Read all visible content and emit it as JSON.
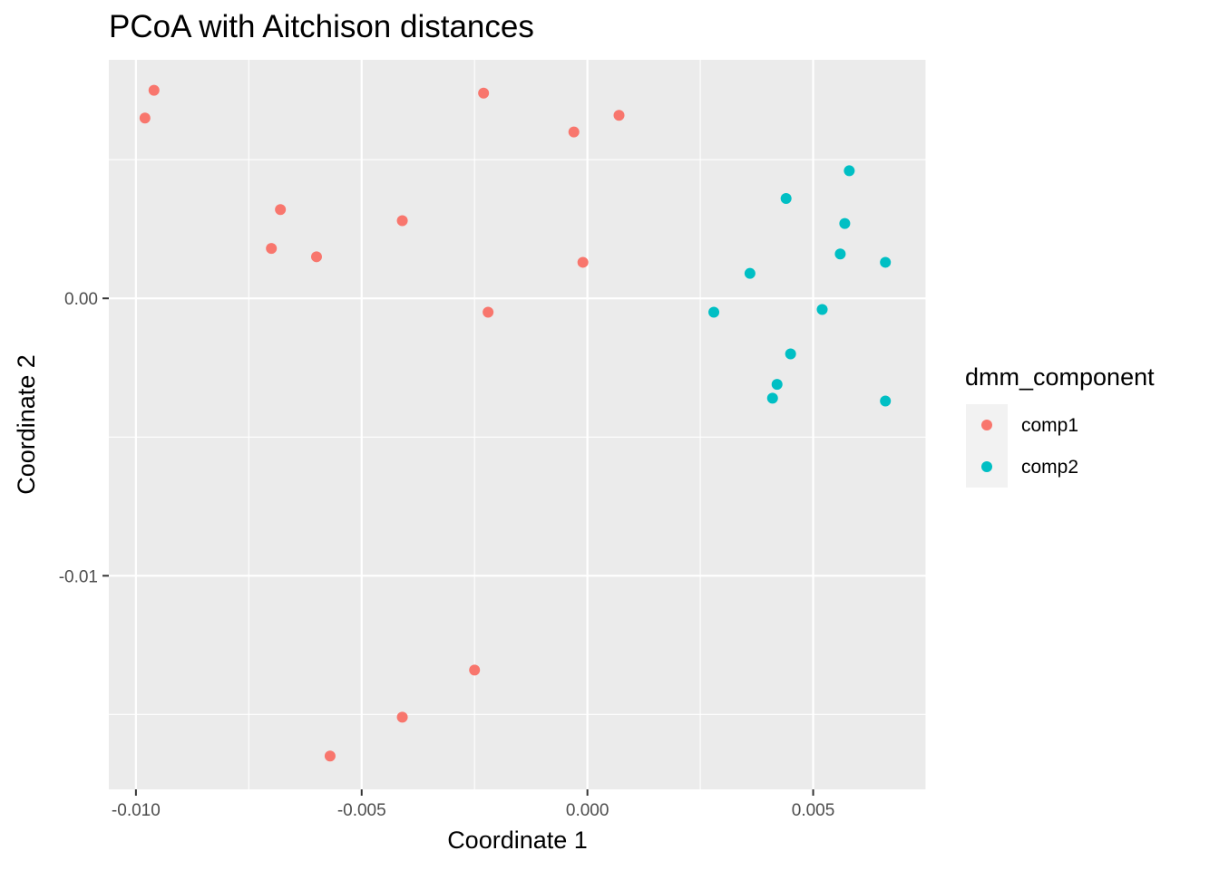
{
  "chart_data": {
    "type": "scatter",
    "title": "PCoA with Aitchison distances",
    "xlabel": "Coordinate 1",
    "ylabel": "Coordinate 2",
    "xlim": [
      -0.0106,
      0.0075
    ],
    "ylim": [
      -0.0177,
      0.0086
    ],
    "xticks": [
      -0.01,
      -0.005,
      0.0,
      0.005
    ],
    "xtick_labels": [
      "-0.010",
      "-0.005",
      "0.000",
      "0.005"
    ],
    "yticks": [
      0.0,
      -0.01
    ],
    "ytick_labels": [
      "0.00",
      "-0.01"
    ],
    "grid": true,
    "legend": {
      "title": "dmm_component",
      "position": "right"
    },
    "series": [
      {
        "name": "comp1",
        "color": "#F8766D",
        "points": [
          {
            "x": -0.0096,
            "y": 0.0075
          },
          {
            "x": -0.0098,
            "y": 0.0065
          },
          {
            "x": -0.0023,
            "y": 0.0074
          },
          {
            "x": -0.0003,
            "y": 0.006
          },
          {
            "x": 0.0007,
            "y": 0.0066
          },
          {
            "x": -0.0068,
            "y": 0.0032
          },
          {
            "x": -0.007,
            "y": 0.0018
          },
          {
            "x": -0.006,
            "y": 0.0015
          },
          {
            "x": -0.0041,
            "y": 0.0028
          },
          {
            "x": -0.0001,
            "y": 0.0013
          },
          {
            "x": -0.0022,
            "y": -0.0005
          },
          {
            "x": -0.0025,
            "y": -0.0134
          },
          {
            "x": -0.0041,
            "y": -0.0151
          },
          {
            "x": -0.0057,
            "y": -0.0165
          }
        ]
      },
      {
        "name": "comp2",
        "color": "#00BFC4",
        "points": [
          {
            "x": 0.0058,
            "y": 0.0046
          },
          {
            "x": 0.0044,
            "y": 0.0036
          },
          {
            "x": 0.0057,
            "y": 0.0027
          },
          {
            "x": 0.0056,
            "y": 0.0016
          },
          {
            "x": 0.0066,
            "y": 0.0013
          },
          {
            "x": 0.0036,
            "y": 0.0009
          },
          {
            "x": 0.0028,
            "y": -0.0005
          },
          {
            "x": 0.0052,
            "y": -0.0004
          },
          {
            "x": 0.0045,
            "y": -0.002
          },
          {
            "x": 0.0042,
            "y": -0.0031
          },
          {
            "x": 0.0041,
            "y": -0.0036
          },
          {
            "x": 0.0066,
            "y": -0.0037
          }
        ]
      }
    ]
  }
}
